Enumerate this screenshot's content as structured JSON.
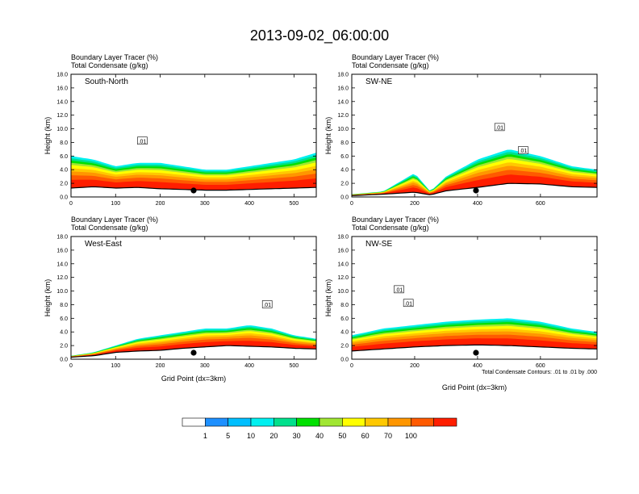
{
  "figure": {
    "title": "2013-09-02_06:00:00",
    "panel_subtitle_line1": "Boundary Layer Tracer    (%)",
    "panel_subtitle_line2": "Total Condensate    (g/kg)",
    "contour_note": "Total Condensate Contours: .01 to .01 by .000",
    "contour_label": ".01"
  },
  "colorbar": {
    "levels": [
      "1",
      "5",
      "10",
      "20",
      "30",
      "40",
      "50",
      "60",
      "70",
      "100"
    ],
    "colors": [
      "#ffffff",
      "#1e90ff",
      "#00bfff",
      "#00f0f0",
      "#00e08c",
      "#00e000",
      "#a0e632",
      "#ffff00",
      "#ffc800",
      "#ff9600",
      "#ff5a00",
      "#ff1e00"
    ]
  },
  "chart_data": [
    {
      "type": "heatmap",
      "panel": "South-North",
      "xlabel": "",
      "ylabel": "Height (km)",
      "xlim": [
        0,
        550
      ],
      "ylim": [
        0,
        18
      ],
      "xticks": [
        "0",
        "100",
        "200",
        "300",
        "400",
        "500"
      ],
      "yticks": [
        "0.0",
        "2.0",
        "4.0",
        "6.0",
        "8.0",
        "10.0",
        "12.0",
        "14.0",
        "16.0",
        "18.0"
      ],
      "marker_x": 275,
      "contour_labels": [
        {
          "text": ".01",
          "x": 160,
          "y": 8.2
        }
      ],
      "terrain": {
        "x": [
          0,
          50,
          100,
          150,
          200,
          250,
          300,
          350,
          400,
          450,
          500,
          550
        ],
        "height_km": [
          1.3,
          1.5,
          1.3,
          1.4,
          1.2,
          1.1,
          1.0,
          1.0,
          1.1,
          1.2,
          1.3,
          1.4
        ]
      },
      "tracer_top": {
        "x": [
          0,
          50,
          100,
          150,
          200,
          250,
          300,
          350,
          400,
          450,
          500,
          550
        ],
        "height_km": [
          6.0,
          5.5,
          4.5,
          5.0,
          5.0,
          4.5,
          4.0,
          4.0,
          4.5,
          5.0,
          5.5,
          6.5
        ]
      }
    },
    {
      "type": "heatmap",
      "panel": "SW-NE",
      "xlabel": "",
      "ylabel": "Height (km)",
      "xlim": [
        0,
        780
      ],
      "ylim": [
        0,
        18
      ],
      "xticks": [
        "0",
        "200",
        "400",
        "600"
      ],
      "yticks": [
        "0.0",
        "2.0",
        "4.0",
        "6.0",
        "8.0",
        "10.0",
        "12.0",
        "14.0",
        "16.0",
        "18.0"
      ],
      "marker_x": 395,
      "contour_labels": [
        {
          "text": ".01",
          "x": 470,
          "y": 10.2
        },
        {
          "text": ".01",
          "x": 545,
          "y": 6.8
        }
      ],
      "terrain": {
        "x": [
          0,
          100,
          200,
          250,
          300,
          400,
          500,
          600,
          700,
          780
        ],
        "height_km": [
          0.2,
          0.4,
          0.7,
          0.3,
          0.9,
          1.4,
          2.0,
          1.9,
          1.5,
          1.4
        ]
      },
      "tracer_top": {
        "x": [
          0,
          100,
          200,
          250,
          300,
          400,
          500,
          600,
          700,
          780
        ],
        "height_km": [
          0.4,
          0.8,
          3.5,
          0.8,
          3.0,
          5.5,
          7.0,
          6.0,
          4.5,
          4.0
        ]
      }
    },
    {
      "type": "heatmap",
      "panel": "West-East",
      "xlabel": "Grid Point (dx=3km)",
      "ylabel": "Height (km)",
      "xlim": [
        0,
        550
      ],
      "ylim": [
        0,
        18
      ],
      "xticks": [
        "0",
        "100",
        "200",
        "300",
        "400",
        "500"
      ],
      "yticks": [
        "0.0",
        "2.0",
        "4.0",
        "6.0",
        "8.0",
        "10.0",
        "12.0",
        "14.0",
        "16.0",
        "18.0"
      ],
      "marker_x": 275,
      "contour_labels": [
        {
          "text": ".01",
          "x": 440,
          "y": 8.0
        }
      ],
      "terrain": {
        "x": [
          0,
          50,
          100,
          150,
          200,
          250,
          300,
          350,
          400,
          450,
          500,
          550
        ],
        "height_km": [
          0.3,
          0.5,
          1.0,
          1.2,
          1.3,
          1.6,
          1.8,
          2.0,
          1.9,
          1.8,
          1.6,
          1.5
        ]
      },
      "tracer_top": {
        "x": [
          0,
          50,
          100,
          150,
          200,
          250,
          300,
          350,
          400,
          450,
          500,
          550
        ],
        "height_km": [
          0.5,
          1.0,
          2.0,
          3.0,
          3.5,
          4.0,
          4.5,
          4.5,
          5.0,
          4.5,
          3.5,
          3.0
        ]
      }
    },
    {
      "type": "heatmap",
      "panel": "NW-SE",
      "xlabel": "Grid Point (dx=3km)",
      "ylabel": "Height (km)",
      "xlim": [
        0,
        780
      ],
      "ylim": [
        0,
        18
      ],
      "xticks": [
        "0",
        "200",
        "400",
        "600"
      ],
      "yticks": [
        "0.0",
        "2.0",
        "4.0",
        "6.0",
        "8.0",
        "10.0",
        "12.0",
        "14.0",
        "16.0",
        "18.0"
      ],
      "marker_x": 395,
      "contour_labels": [
        {
          "text": ".01",
          "x": 150,
          "y": 10.2
        },
        {
          "text": ".01",
          "x": 180,
          "y": 8.2
        }
      ],
      "terrain": {
        "x": [
          0,
          100,
          200,
          300,
          400,
          500,
          600,
          700,
          780
        ],
        "height_km": [
          1.2,
          1.5,
          1.8,
          2.0,
          2.1,
          2.0,
          1.8,
          1.6,
          1.5
        ]
      },
      "tracer_top": {
        "x": [
          0,
          100,
          200,
          300,
          400,
          500,
          600,
          700,
          780
        ],
        "height_km": [
          3.5,
          4.5,
          5.0,
          5.5,
          5.8,
          6.0,
          5.5,
          4.5,
          4.0
        ]
      }
    }
  ]
}
